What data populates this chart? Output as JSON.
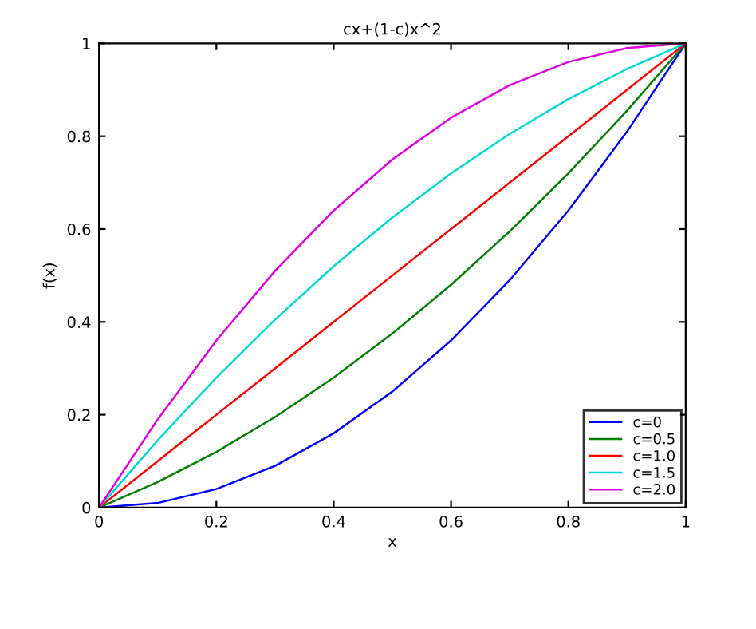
{
  "chart_data": {
    "type": "line",
    "title": "cx+(1-c)x^2",
    "xlabel": "x",
    "ylabel": "f(x)",
    "x": [
      0,
      0.1,
      0.2,
      0.3,
      0.4,
      0.5,
      0.6,
      0.7,
      0.8,
      0.9,
      1
    ],
    "series": [
      {
        "name": "c=0",
        "color": "#0000ff",
        "values": [
          0,
          0.01,
          0.04,
          0.09,
          0.16,
          0.25,
          0.36,
          0.49,
          0.64,
          0.81,
          1
        ]
      },
      {
        "name": "c=0.5",
        "color": "#008000",
        "values": [
          0,
          0.055,
          0.12,
          0.195,
          0.28,
          0.375,
          0.48,
          0.595,
          0.72,
          0.855,
          1
        ]
      },
      {
        "name": "c=1.0",
        "color": "#ff0000",
        "values": [
          0,
          0.1,
          0.2,
          0.3,
          0.4,
          0.5,
          0.6,
          0.7,
          0.8,
          0.9,
          1
        ]
      },
      {
        "name": "c=1.5",
        "color": "#00d8d8",
        "values": [
          0,
          0.145,
          0.28,
          0.405,
          0.52,
          0.625,
          0.72,
          0.805,
          0.88,
          0.945,
          1
        ]
      },
      {
        "name": "c=2.0",
        "color": "#e000e0",
        "values": [
          0,
          0.19,
          0.36,
          0.51,
          0.64,
          0.75,
          0.84,
          0.91,
          0.96,
          0.99,
          1
        ]
      }
    ],
    "xlim": [
      0,
      1
    ],
    "ylim": [
      0,
      1
    ],
    "xticks": [
      0,
      0.2,
      0.4,
      0.6,
      0.8,
      1
    ],
    "yticks": [
      0,
      0.2,
      0.4,
      0.6,
      0.8,
      1
    ],
    "grid": false,
    "legend": "bottom right",
    "marker": "none",
    "line_style": "solid"
  }
}
